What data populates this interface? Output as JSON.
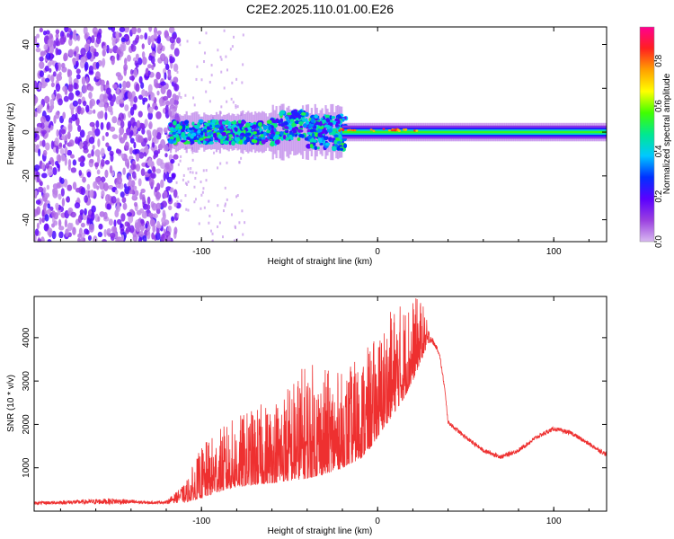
{
  "page": {
    "title": "C2E2.2025.110.01.00.E26"
  },
  "chart_data": [
    {
      "type": "heatmap",
      "title": "C2E2.2025.110.01.00.E26",
      "xlabel": "Height of straight line (km)",
      "ylabel": "Frequency (Hz)",
      "xlim": [
        -195,
        130
      ],
      "ylim": [
        -50,
        48
      ],
      "x_ticks": [
        -100,
        0,
        100
      ],
      "y_ticks": [
        -40,
        -20,
        0,
        20,
        40
      ],
      "x_tick_labels": [
        "-100",
        "0",
        "100"
      ],
      "y_tick_labels": [
        "-40",
        "-20",
        "0",
        "20",
        "40"
      ],
      "colorbar": {
        "label": "Normalized spectral amplitude",
        "range": [
          0.0,
          0.95
        ],
        "ticks": [
          0.0,
          0.2,
          0.4,
          0.6,
          0.8
        ],
        "tick_labels": [
          "0.0",
          "0.2",
          "0.4",
          "0.6",
          "0.8"
        ],
        "colors": [
          "#d8b8f0",
          "#9a40e0",
          "#5a00ff",
          "#0030ff",
          "#00c8ff",
          "#00e890",
          "#40ff00",
          "#ffff00",
          "#ffa000",
          "#ff2020",
          "#ff0090"
        ]
      },
      "regions": [
        {
          "name": "noise",
          "x": [
            -195,
            -115
          ],
          "freq_spread": 48,
          "level": 0.15
        },
        {
          "name": "transition",
          "x": [
            -115,
            -20
          ],
          "freq_spread": 8,
          "level": 0.35
        },
        {
          "name": "band",
          "x": [
            -20,
            130
          ],
          "freq_spread": 2,
          "level": 0.5
        }
      ]
    },
    {
      "type": "line",
      "xlabel": "Height of straight line (km)",
      "ylabel": "SNR (10 * v/v)",
      "xlim": [
        -195,
        130
      ],
      "ylim": [
        0,
        4950
      ],
      "x_ticks": [
        -100,
        0,
        100
      ],
      "y_ticks": [
        1000,
        2000,
        3000,
        4000
      ],
      "x_tick_labels": [
        "-100",
        "0",
        "100"
      ],
      "y_tick_labels": [
        "1000",
        "2000",
        "3000",
        "4000"
      ],
      "color": "#ee3030",
      "envelope": {
        "x": [
          -195,
          -170,
          -150,
          -130,
          -120,
          -110,
          -100,
          -90,
          -80,
          -70,
          -60,
          -50,
          -40,
          -30,
          -20,
          -10,
          -5,
          0,
          5,
          10,
          15,
          20,
          25,
          28,
          30,
          33,
          35,
          38,
          40,
          50,
          60,
          70,
          80,
          90,
          100,
          110,
          120,
          130
        ],
        "base": [
          150,
          160,
          155,
          165,
          170,
          200,
          300,
          450,
          550,
          600,
          650,
          700,
          750,
          850,
          1000,
          1200,
          1400,
          1700,
          2000,
          2300,
          2600,
          3000,
          3500,
          3800,
          3900,
          3750,
          3600,
          2800,
          2000,
          1650,
          1350,
          1200,
          1350,
          1650,
          1850,
          1750,
          1500,
          1250
        ],
        "peak": [
          220,
          260,
          300,
          230,
          240,
          600,
          1500,
          1900,
          2200,
          2400,
          2600,
          3000,
          3500,
          3300,
          3200,
          3600,
          3800,
          4100,
          4500,
          4800,
          4850,
          4950,
          4900,
          4400,
          4100,
          3850,
          3700,
          2900,
          2100,
          1750,
          1450,
          1300,
          1450,
          1750,
          1950,
          1850,
          1600,
          1350
        ]
      }
    }
  ]
}
